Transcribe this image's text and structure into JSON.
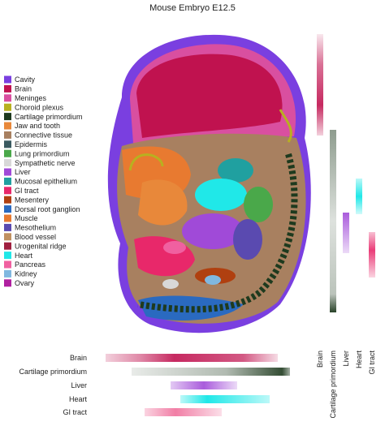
{
  "title": "Mouse Embryo E12.5",
  "legend": {
    "items": [
      {
        "label": "Cavity",
        "color": "#7a3fe0"
      },
      {
        "label": "Brain",
        "color": "#c0124f"
      },
      {
        "label": "Meninges",
        "color": "#d94fa0"
      },
      {
        "label": "Choroid plexus",
        "color": "#b8b020"
      },
      {
        "label": "Cartilage primordium",
        "color": "#1e3a1e"
      },
      {
        "label": "Jaw and tooth",
        "color": "#e8883a"
      },
      {
        "label": "Connective tissue",
        "color": "#a88060"
      },
      {
        "label": "Epidermis",
        "color": "#3a5a60"
      },
      {
        "label": "Lung primordium",
        "color": "#4aa84a"
      },
      {
        "label": "Sympathetic nerve",
        "color": "#d8d8d8"
      },
      {
        "label": "Liver",
        "color": "#a04ad8"
      },
      {
        "label": "Mucosal epithelium",
        "color": "#20a0a0"
      },
      {
        "label": "GI tract",
        "color": "#e8286a"
      },
      {
        "label": "Mesentery",
        "color": "#b04010"
      },
      {
        "label": "Dorsal root ganglion",
        "color": "#2a6ac0"
      },
      {
        "label": "Muscle",
        "color": "#e87a30"
      },
      {
        "label": "Mesothelium",
        "color": "#5a4ab0"
      },
      {
        "label": "Blood vessel",
        "color": "#c09060"
      },
      {
        "label": "Urogenital ridge",
        "color": "#a02040"
      },
      {
        "label": "Heart",
        "color": "#20e8e8"
      },
      {
        "label": "Pancreas",
        "color": "#f060a0"
      },
      {
        "label": "Kidney",
        "color": "#80b8e0"
      },
      {
        "label": "Ovary",
        "color": "#b020a0"
      }
    ]
  },
  "marginals": {
    "labels": [
      "Brain",
      "Cartilage primordium",
      "Liver",
      "Heart",
      "GI tract"
    ]
  }
}
